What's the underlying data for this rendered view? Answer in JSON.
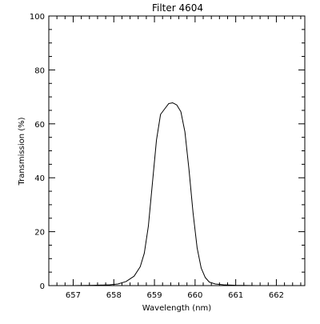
{
  "chart_data": {
    "type": "line",
    "title": "Filter 4604",
    "xlabel": "Wavelength (nm)",
    "ylabel": "Transmission (%)",
    "xlim": [
      656.4,
      662.7
    ],
    "ylim": [
      0,
      100
    ],
    "x_ticks": [
      657,
      658,
      659,
      660,
      661,
      662
    ],
    "x_tick_labels": [
      "657",
      "658",
      "659",
      "660",
      "661",
      "662"
    ],
    "y_ticks": [
      0,
      20,
      40,
      60,
      80,
      100
    ],
    "y_tick_labels": [
      "0",
      "20",
      "40",
      "60",
      "80",
      "100"
    ],
    "grid": false,
    "series": [
      {
        "x": [
          656.45,
          657.0,
          657.5,
          657.9,
          658.1,
          658.3,
          658.5,
          658.65,
          658.75,
          658.85,
          658.95,
          659.05,
          659.15,
          659.25,
          659.35,
          659.45,
          659.55,
          659.65,
          659.75,
          659.85,
          659.95,
          660.05,
          660.15,
          660.25,
          660.35,
          660.5,
          660.7,
          661.0,
          661.5,
          662.0,
          662.65
        ],
        "y": [
          0.0,
          0.0,
          0.1,
          0.3,
          0.6,
          1.5,
          3.5,
          7,
          12,
          22,
          38,
          54,
          63.5,
          65.5,
          67.5,
          67.8,
          67.0,
          64.5,
          57,
          43,
          27,
          14,
          6.5,
          3.0,
          1.3,
          0.6,
          0.3,
          0.1,
          0.0,
          0.0,
          0.0
        ]
      }
    ]
  }
}
